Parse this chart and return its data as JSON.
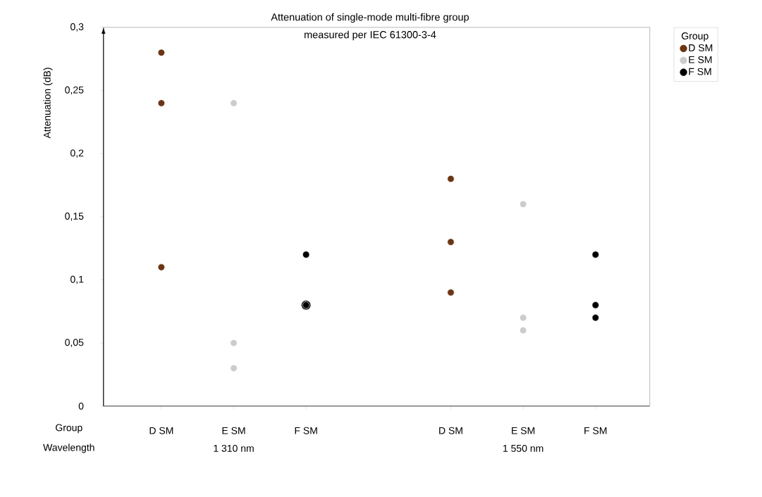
{
  "chart_data": {
    "type": "scatter",
    "title": "Attenuation of single-mode multi-fibre group\nmeasured per IEC 61300-3-4",
    "ylabel": "Attenuation  (dB)",
    "legend_title": "Group",
    "legend": "top right",
    "marker": "circle",
    "categories": [
      "D SM",
      "E SM",
      "F SM",
      null,
      "D SM",
      "E SM",
      "F SM"
    ],
    "ylim": [
      0,
      0.3
    ],
    "yticks": [
      0,
      {
        "value": 0.05,
        "label": "0,05"
      },
      {
        "value": 0.1,
        "label": "0,1"
      },
      {
        "value": 0.15,
        "label": "0,15"
      },
      {
        "value": 0.2,
        "label": "0,2"
      },
      {
        "value": 0.25,
        "label": "0,25"
      },
      {
        "value": 0.3,
        "label": "0,3"
      }
    ],
    "annotations": [
      "Group",
      "Wavelength",
      "1 310 nm",
      "1 550 nm"
    ],
    "series": [
      {
        "name": "D SM",
        "color": "#6b3513",
        "values": [
          0.28,
          null,
          null,
          null,
          0.18,
          null,
          null
        ]
      },
      {
        "color": "#6b3513",
        "values": [
          0.24,
          null,
          null,
          null,
          0.13,
          null,
          null
        ]
      },
      {
        "color": "#6b3513",
        "values": [
          0.11,
          null,
          null,
          null,
          0.09,
          null,
          null
        ]
      },
      {
        "name": "E SM",
        "color": "#cccccc",
        "values": [
          null,
          0.24,
          null,
          null,
          null,
          0.16,
          null
        ]
      },
      {
        "color": "#cccccc",
        "values": [
          null,
          0.05,
          null,
          null,
          null,
          0.07,
          null
        ]
      },
      {
        "color": "#cccccc",
        "values": [
          null,
          0.03,
          null,
          null,
          null,
          0.06,
          null
        ]
      },
      {
        "name": "F SM",
        "color": "#000000",
        "values": [
          null,
          null,
          0.12,
          null,
          null,
          null,
          0.12
        ]
      },
      {
        "color": "#000000",
        "values": [
          null,
          null,
          0.08,
          null,
          null,
          null,
          0.08
        ]
      },
      {
        "color": "#000000",
        "values": [
          null,
          null,
          0.08,
          null,
          null,
          null,
          0.07
        ]
      }
    ]
  }
}
